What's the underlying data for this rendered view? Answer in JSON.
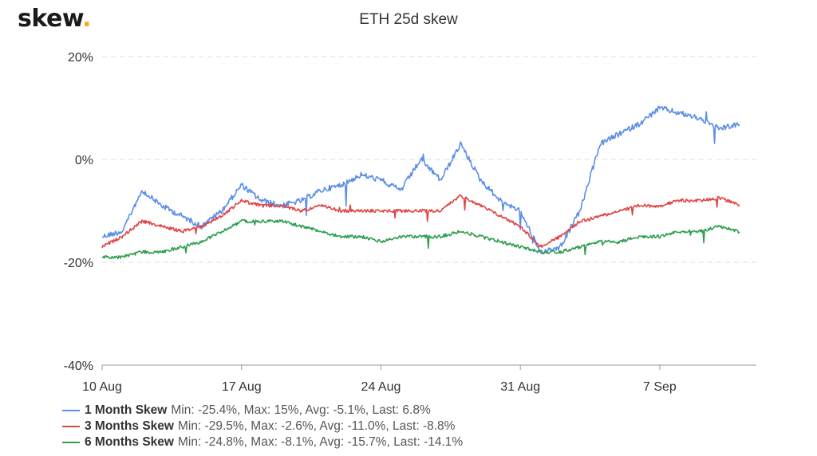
{
  "brand": {
    "name": "skew",
    "dot": "."
  },
  "chart_data": {
    "type": "line",
    "title": "ETH 25d skew",
    "x_start": "2020-08-10",
    "x_end": "2020-09-11",
    "x_ticks": [
      {
        "date": "2020-08-10",
        "label": "10 Aug"
      },
      {
        "date": "2020-08-17",
        "label": "17 Aug"
      },
      {
        "date": "2020-08-24",
        "label": "24 Aug"
      },
      {
        "date": "2020-08-31",
        "label": "31 Aug"
      },
      {
        "date": "2020-09-07",
        "label": "7 Sep"
      }
    ],
    "y_ticks": [
      {
        "value": 20,
        "label": "20%"
      },
      {
        "value": 0,
        "label": "0%"
      },
      {
        "value": -20,
        "label": "-20%"
      },
      {
        "value": -40,
        "label": "-40%"
      }
    ],
    "ylim": [
      -40,
      20
    ],
    "grid": true,
    "legend_position": "bottom-left",
    "series": [
      {
        "name": "1 Month Skew",
        "stats": "Min: -25.4%, Max: 15%, Avg: -5.1%, Last: 6.8%",
        "color": "#5b8ee6",
        "points": [
          [
            "2020-08-10",
            -15
          ],
          [
            "2020-08-11",
            -14
          ],
          [
            "2020-08-12",
            -6
          ],
          [
            "2020-08-13",
            -9
          ],
          [
            "2020-08-14",
            -11
          ],
          [
            "2020-08-15",
            -13
          ],
          [
            "2020-08-16",
            -10
          ],
          [
            "2020-08-17",
            -5
          ],
          [
            "2020-08-18",
            -8
          ],
          [
            "2020-08-19",
            -9
          ],
          [
            "2020-08-20",
            -8
          ],
          [
            "2020-08-21",
            -6
          ],
          [
            "2020-08-22",
            -5
          ],
          [
            "2020-08-23",
            -3
          ],
          [
            "2020-08-24",
            -4
          ],
          [
            "2020-08-25",
            -6
          ],
          [
            "2020-08-26",
            0
          ],
          [
            "2020-08-27",
            -4
          ],
          [
            "2020-08-28",
            3
          ],
          [
            "2020-08-29",
            -4
          ],
          [
            "2020-08-30",
            -8
          ],
          [
            "2020-08-31",
            -10
          ],
          [
            "2020-09-01",
            -18
          ],
          [
            "2020-09-02",
            -17
          ],
          [
            "2020-09-03",
            -10
          ],
          [
            "2020-09-04",
            3
          ],
          [
            "2020-09-05",
            5
          ],
          [
            "2020-09-06",
            7
          ],
          [
            "2020-09-07",
            10
          ],
          [
            "2020-09-08",
            9
          ],
          [
            "2020-09-09",
            8
          ],
          [
            "2020-09-10",
            6
          ],
          [
            "2020-09-11",
            6.8
          ]
        ]
      },
      {
        "name": "3 Months Skew",
        "stats": "Min: -29.5%, Max: -2.6%, Avg: -11.0%, Last: -8.8%",
        "color": "#e04545",
        "points": [
          [
            "2020-08-10",
            -17
          ],
          [
            "2020-08-11",
            -15
          ],
          [
            "2020-08-12",
            -12
          ],
          [
            "2020-08-13",
            -13
          ],
          [
            "2020-08-14",
            -14
          ],
          [
            "2020-08-15",
            -13
          ],
          [
            "2020-08-16",
            -11
          ],
          [
            "2020-08-17",
            -8
          ],
          [
            "2020-08-18",
            -9
          ],
          [
            "2020-08-19",
            -9
          ],
          [
            "2020-08-20",
            -10
          ],
          [
            "2020-08-21",
            -9
          ],
          [
            "2020-08-22",
            -10
          ],
          [
            "2020-08-23",
            -10
          ],
          [
            "2020-08-24",
            -10
          ],
          [
            "2020-08-25",
            -10
          ],
          [
            "2020-08-26",
            -10
          ],
          [
            "2020-08-27",
            -10
          ],
          [
            "2020-08-28",
            -7
          ],
          [
            "2020-08-29",
            -9
          ],
          [
            "2020-08-30",
            -11
          ],
          [
            "2020-08-31",
            -13
          ],
          [
            "2020-09-01",
            -17
          ],
          [
            "2020-09-02",
            -15
          ],
          [
            "2020-09-03",
            -12
          ],
          [
            "2020-09-04",
            -11
          ],
          [
            "2020-09-05",
            -10
          ],
          [
            "2020-09-06",
            -9
          ],
          [
            "2020-09-07",
            -9
          ],
          [
            "2020-09-08",
            -8
          ],
          [
            "2020-09-09",
            -8
          ],
          [
            "2020-09-10",
            -7.5
          ],
          [
            "2020-09-11",
            -8.8
          ]
        ]
      },
      {
        "name": "6 Months Skew",
        "stats": "Min: -24.8%, Max: -8.1%, Avg: -15.7%, Last: -14.1%",
        "color": "#2e9e4f",
        "points": [
          [
            "2020-08-10",
            -19
          ],
          [
            "2020-08-11",
            -19
          ],
          [
            "2020-08-12",
            -18
          ],
          [
            "2020-08-13",
            -18
          ],
          [
            "2020-08-14",
            -17
          ],
          [
            "2020-08-15",
            -16
          ],
          [
            "2020-08-16",
            -14
          ],
          [
            "2020-08-17",
            -12
          ],
          [
            "2020-08-18",
            -12
          ],
          [
            "2020-08-19",
            -12
          ],
          [
            "2020-08-20",
            -13
          ],
          [
            "2020-08-21",
            -14
          ],
          [
            "2020-08-22",
            -15
          ],
          [
            "2020-08-23",
            -15
          ],
          [
            "2020-08-24",
            -16
          ],
          [
            "2020-08-25",
            -15
          ],
          [
            "2020-08-26",
            -15
          ],
          [
            "2020-08-27",
            -15
          ],
          [
            "2020-08-28",
            -14
          ],
          [
            "2020-08-29",
            -15
          ],
          [
            "2020-08-30",
            -16
          ],
          [
            "2020-08-31",
            -17
          ],
          [
            "2020-09-01",
            -18
          ],
          [
            "2020-09-02",
            -18
          ],
          [
            "2020-09-03",
            -17
          ],
          [
            "2020-09-04",
            -16
          ],
          [
            "2020-09-05",
            -16
          ],
          [
            "2020-09-06",
            -15
          ],
          [
            "2020-09-07",
            -15
          ],
          [
            "2020-09-08",
            -14
          ],
          [
            "2020-09-09",
            -14
          ],
          [
            "2020-09-10",
            -13
          ],
          [
            "2020-09-11",
            -14.1
          ]
        ]
      }
    ]
  }
}
